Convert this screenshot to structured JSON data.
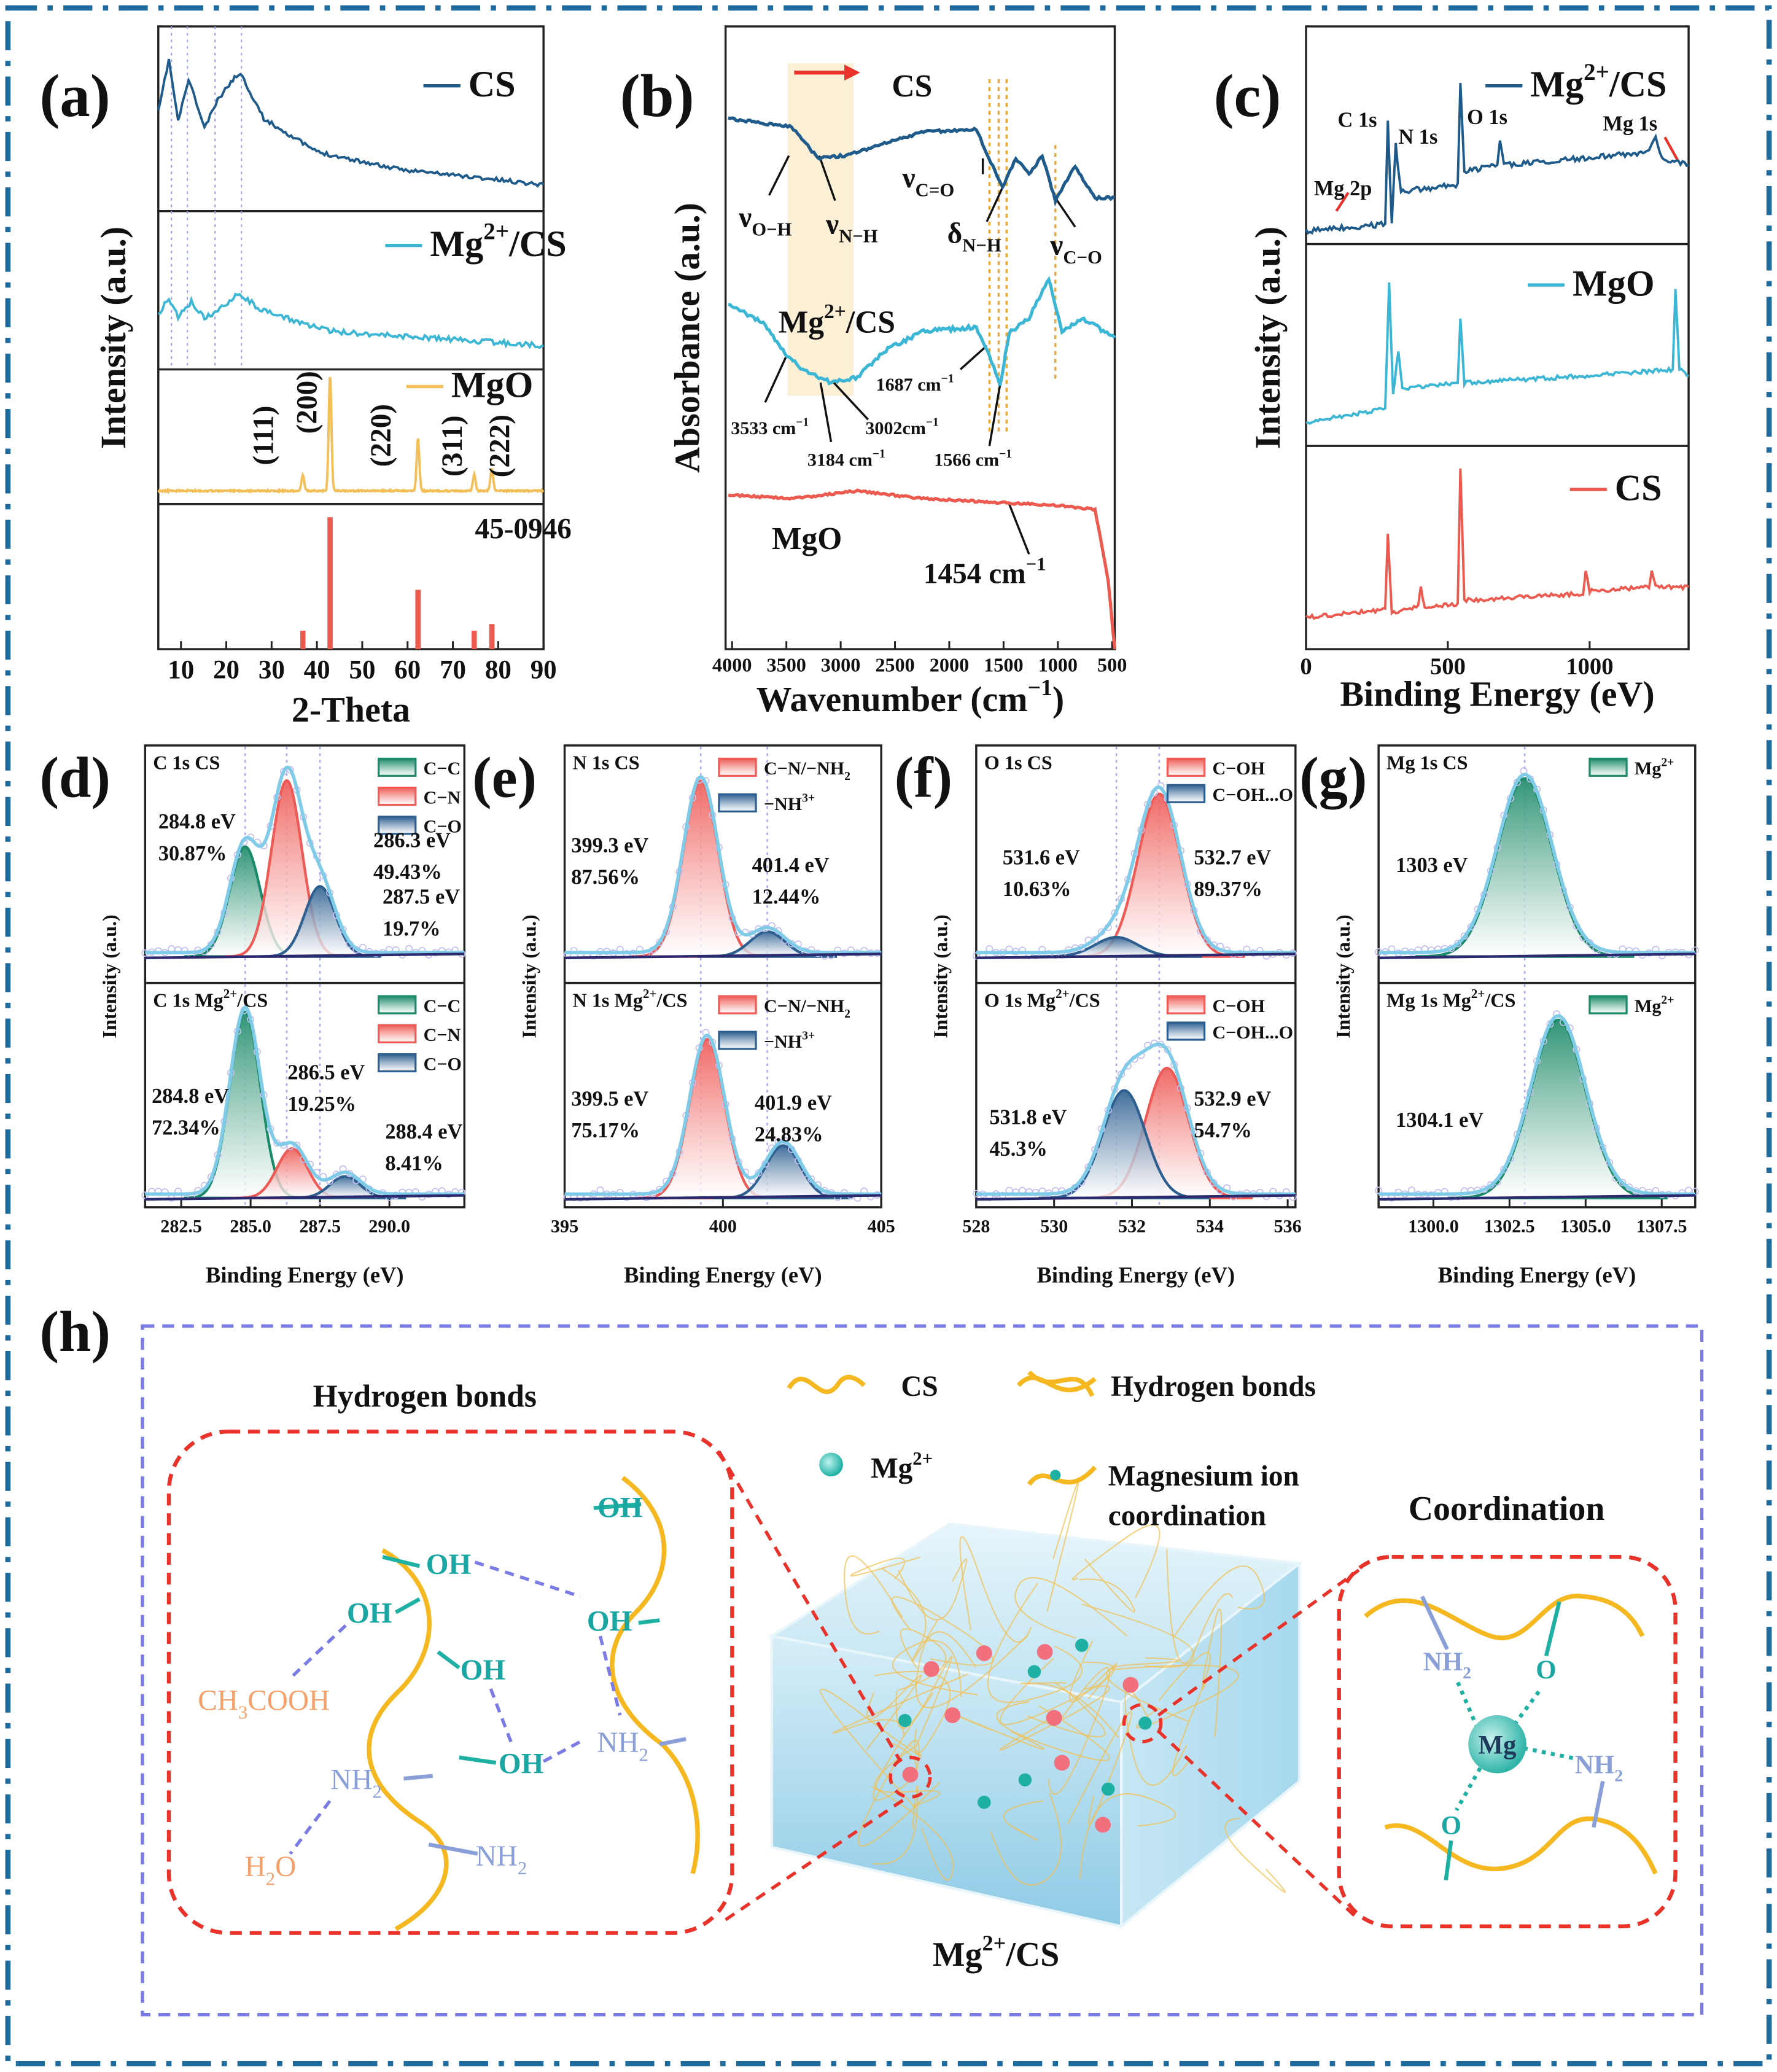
{
  "panels": {
    "a": {
      "label": "(a)",
      "x_label": "2-Theta",
      "y_label": "Intensity (a.u.)",
      "xlim": [
        5,
        90
      ],
      "xticks": [
        10,
        20,
        30,
        40,
        50,
        60,
        70,
        80,
        90
      ],
      "series": [
        {
          "name": "CS",
          "color": "#1f5b8a"
        },
        {
          "name": [
            {
              "text": "Mg",
              "sup": "2+"
            },
            "/CS"
          ],
          "color": "#3bb6d4"
        },
        {
          "name": "MgO",
          "color": "#f3bf58"
        }
      ],
      "peak_labels": [
        "(111)",
        "(200)",
        "(220)",
        "(311)",
        "(222)"
      ],
      "reference": {
        "name": "45-0946",
        "color": "#ec5a4f",
        "positions": [
          36.9,
          42.9,
          62.3,
          74.7,
          78.6
        ],
        "intensities": [
          14,
          100,
          45,
          14,
          19
        ]
      }
    },
    "b": {
      "label": "(b)",
      "x_label": [
        {
          "text": "Wavenumber (cm",
          "sup": "−1"
        },
        ")"
      ],
      "y_label": "Absorbance (a.u.)",
      "xlim": [
        4060,
        476
      ],
      "xticks": [
        4000,
        3500,
        3000,
        2500,
        2000,
        1500,
        1000,
        500
      ],
      "series": [
        {
          "name": "CS",
          "color": "#1f5b8a"
        },
        {
          "name": [
            {
              "text": "Mg",
              "sup": "2+"
            },
            "/CS"
          ],
          "color": "#3bb6d4"
        },
        {
          "name": "MgO",
          "color": "#ec5a4f"
        }
      ],
      "annotations": [
        {
          "text": "ν",
          "sub": "O−H"
        },
        {
          "text": "ν",
          "sub": "N−H"
        },
        {
          "text": "ν",
          "sub": "C=O"
        },
        {
          "text": "δ",
          "sub": "N−H"
        },
        {
          "text": "ν",
          "sub": "C−O"
        },
        {
          "text": "3533 cm",
          "sup": "−1"
        },
        {
          "text": "3184 cm",
          "sup": "−1"
        },
        {
          "text": "3002cm",
          "sup": "−1"
        },
        {
          "text": "1687 cm",
          "sup": "−1"
        },
        {
          "text": "1566 cm",
          "sup": "−1"
        },
        {
          "text": "1454 cm",
          "sup": "−1"
        }
      ]
    },
    "c": {
      "label": "(c)",
      "x_label": "Binding Energy (eV)",
      "y_label": "Intensity (a.u.)",
      "xlim": [
        0,
        1349
      ],
      "xticks": [
        0,
        500,
        1000
      ],
      "series": [
        {
          "name": [
            {
              "text": "Mg",
              "sup": "2+"
            },
            "/CS"
          ],
          "color": "#1f5b8a"
        },
        {
          "name": "MgO",
          "color": "#3bb6d4"
        },
        {
          "name": "CS",
          "color": "#ec5a4f"
        }
      ],
      "peak_labels": [
        "C 1s",
        "N 1s",
        "O 1s",
        "Mg 1s",
        "Mg 2p"
      ]
    },
    "d": {
      "label": "(d)",
      "x_label": "Binding Energy (eV)",
      "y_label": "Intensity (a.u.)",
      "xlim": [
        281.2,
        292.7
      ],
      "xticks": [
        282.5,
        {
          "value": 285,
          "label": "285.0"
        },
        287.5,
        {
          "value": 290,
          "label": "290.0"
        }
      ],
      "spectra": [
        {
          "title": "C 1s CS",
          "components": [
            {
              "name": "C−C",
              "color": "#1b8a68"
            },
            {
              "name": "C−N",
              "color": "#ee5a55"
            },
            {
              "name": "C−O",
              "color": "#2d5f90"
            }
          ],
          "peaks": [
            {
              "position": 284.8,
              "position_label": "284.8 eV",
              "percent": 30.87,
              "percent_label": "30.87%"
            },
            {
              "position": 286.3,
              "position_label": "286.3 eV",
              "percent": 49.43,
              "percent_label": "49.43%"
            },
            {
              "position": 287.5,
              "position_label": "287.5 eV",
              "percent": 19.7,
              "percent_label": "19.7%"
            }
          ]
        },
        {
          "title": [
            {
              "text": "C 1s Mg",
              "sup": "2+"
            },
            "/CS"
          ],
          "components": [
            {
              "name": "C−C",
              "color": "#1b8a68"
            },
            {
              "name": "C−N",
              "color": "#ee5a55"
            },
            {
              "name": "C−O",
              "color": "#2d5f90"
            }
          ],
          "peaks": [
            {
              "position": 284.8,
              "position_label": "284.8 eV",
              "percent": 72.34,
              "percent_label": "72.34%"
            },
            {
              "position": 286.5,
              "position_label": "286.5 eV",
              "percent": 19.25,
              "percent_label": "19.25%"
            },
            {
              "position": 288.4,
              "position_label": "288.4 eV",
              "percent": 8.41,
              "percent_label": "8.41%"
            }
          ]
        }
      ]
    },
    "e": {
      "label": "(e)",
      "x_label": "Binding Energy (eV)",
      "y_label": "Intensity (a.u.)",
      "xlim": [
        395,
        405
      ],
      "xticks": [
        395,
        400,
        405
      ],
      "spectra": [
        {
          "title": "N 1s  CS",
          "components": [
            {
              "name": {
                "text": "C−N/−NH",
                "sub": "2"
              },
              "color": "#ee5a55"
            },
            {
              "name": {
                "text": "−NH",
                "sup": "3+"
              },
              "color": "#2d5f90"
            }
          ],
          "peaks": [
            {
              "position": 399.3,
              "position_label": "399.3 eV",
              "percent": 87.56,
              "percent_label": "87.56%"
            },
            {
              "position": 401.4,
              "position_label": "401.4 eV",
              "percent": 12.44,
              "percent_label": "12.44%"
            }
          ]
        },
        {
          "title": [
            {
              "text": "N 1s Mg",
              "sup": "2+"
            },
            "/CS"
          ],
          "components": [
            {
              "name": {
                "text": "C−N/−NH",
                "sub": "2"
              },
              "color": "#ee5a55"
            },
            {
              "name": {
                "text": "−NH",
                "sup": "3+"
              },
              "color": "#2d5f90"
            }
          ],
          "peaks": [
            {
              "position": 399.5,
              "position_label": "399.5 eV",
              "percent": 75.17,
              "percent_label": "75.17%"
            },
            {
              "position": 401.9,
              "position_label": "401.9 eV",
              "percent": 24.83,
              "percent_label": "24.83%"
            }
          ]
        }
      ]
    },
    "f": {
      "label": "(f)",
      "x_label": "Binding Energy (eV)",
      "y_label": "Intensity (a.u.)",
      "xlim": [
        528,
        536.2
      ],
      "xticks": [
        528,
        530,
        532,
        534,
        536
      ],
      "spectra": [
        {
          "title": "O 1s  CS",
          "components": [
            {
              "name": "C−OH",
              "color": "#ee5a55"
            },
            {
              "name": "C−OH...O",
              "color": "#2d5f90"
            }
          ],
          "peaks": [
            {
              "position": 532.7,
              "position_label": "532.7 eV",
              "percent": 89.37,
              "percent_label": "89.37%"
            },
            {
              "position": 531.6,
              "position_label": "531.6 eV",
              "percent": 10.63,
              "percent_label": "10.63%"
            }
          ]
        },
        {
          "title": [
            {
              "text": "O 1s  Mg",
              "sup": "2+"
            },
            "/CS"
          ],
          "components": [
            {
              "name": "C−OH",
              "color": "#ee5a55"
            },
            {
              "name": "C−OH...O",
              "color": "#2d5f90"
            }
          ],
          "peaks": [
            {
              "position": 532.9,
              "position_label": "532.9 eV",
              "percent": 54.7,
              "percent_label": "54.7%"
            },
            {
              "position": 531.8,
              "position_label": "531.8 eV",
              "percent": 45.3,
              "percent_label": "45.3%"
            }
          ]
        }
      ]
    },
    "g": {
      "label": "(g)",
      "x_label": "Binding Energy (eV)",
      "y_label": "Intensity (a.u.)",
      "xlim": [
        1298.2,
        1308.6
      ],
      "xticks": [
        {
          "value": 1300,
          "label": "1300.0"
        },
        1302.5,
        {
          "value": 1305,
          "label": "1305.0"
        },
        1307.5
      ],
      "spectra": [
        {
          "title": "Mg 1s  CS",
          "components": [
            {
              "name": {
                "text": "Mg",
                "sup": "2+"
              },
              "color": "#1b8a68"
            }
          ],
          "peaks": [
            {
              "position": 1303,
              "position_label": "1303 eV"
            }
          ]
        },
        {
          "title": [
            {
              "text": "Mg 1s  Mg",
              "sup": "2+"
            },
            "/CS"
          ],
          "components": [
            {
              "name": {
                "text": "Mg",
                "sup": "2+"
              },
              "color": "#1b8a68"
            }
          ],
          "peaks": [
            {
              "position": 1304.1,
              "position_label": "1304.1 eV"
            }
          ]
        }
      ]
    },
    "h": {
      "label": "(h)",
      "left_title": "Hydrogen bonds",
      "right_title": "Coordination",
      "caption": [
        {
          "text": "Mg",
          "sup": "2+"
        },
        "/CS"
      ],
      "legend": [
        "CS",
        "Hydrogen bonds",
        {
          "text": "Mg",
          "sup": "2+"
        }
      ],
      "coordination_legend": [
        "Magnesium ion",
        "coordination"
      ],
      "left_labels": [
        "OH",
        "OH",
        "OH",
        "OH",
        "OH",
        "OH",
        {
          "text": "NH",
          "sub": "2"
        },
        {
          "text": "NH",
          "sub": "2"
        },
        {
          "text": "NH",
          "sub": "2"
        },
        [
          {
            "text": "CH",
            "sub": "3"
          },
          "COOH"
        ],
        [
          {
            "text": "H",
            "sub": "2"
          },
          "O"
        ]
      ],
      "right_labels": [
        {
          "text": "NH",
          "sub": "2"
        },
        "O",
        "Mg",
        {
          "text": "NH",
          "sub": "2"
        },
        "O"
      ]
    }
  }
}
